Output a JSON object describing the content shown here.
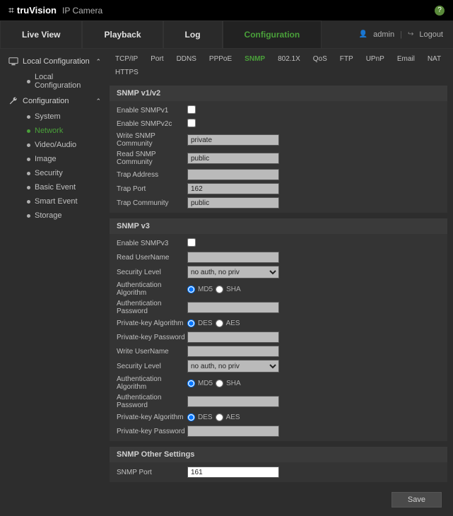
{
  "brand": {
    "logo_glyph": "⌗",
    "name": "truVision",
    "sub": "IP Camera"
  },
  "topbar": {
    "help": "?"
  },
  "mainTabs": {
    "items": [
      "Live View",
      "Playback",
      "Log",
      "Configuration"
    ],
    "activeIndex": 3
  },
  "user": {
    "name": "admin",
    "logout": "Logout"
  },
  "sidebar": {
    "sections": [
      {
        "label": "Local Configuration",
        "items": [
          {
            "label": "Local Configuration",
            "active": false
          }
        ]
      },
      {
        "label": "Configuration",
        "items": [
          {
            "label": "System",
            "active": false
          },
          {
            "label": "Network",
            "active": true
          },
          {
            "label": "Video/Audio",
            "active": false
          },
          {
            "label": "Image",
            "active": false
          },
          {
            "label": "Security",
            "active": false
          },
          {
            "label": "Basic Event",
            "active": false
          },
          {
            "label": "Smart Event",
            "active": false
          },
          {
            "label": "Storage",
            "active": false
          }
        ]
      }
    ]
  },
  "subTabs": {
    "items": [
      "TCP/IP",
      "Port",
      "DDNS",
      "PPPoE",
      "SNMP",
      "802.1X",
      "QoS",
      "FTP",
      "UPnP",
      "Email",
      "NAT",
      "HTTPS"
    ],
    "activeIndex": 4
  },
  "panel1": {
    "title": "SNMP v1/v2",
    "enable_v1_label": "Enable SNMPv1",
    "enable_v1": false,
    "enable_v2c_label": "Enable SNMPv2c",
    "enable_v2c": false,
    "write_comm_label": "Write SNMP Community",
    "write_comm": "private",
    "read_comm_label": "Read SNMP Community",
    "read_comm": "public",
    "trap_addr_label": "Trap Address",
    "trap_addr": "",
    "trap_port_label": "Trap Port",
    "trap_port": "162",
    "trap_comm_label": "Trap Community",
    "trap_comm": "public"
  },
  "panel2": {
    "title": "SNMP v3",
    "enable_v3_label": "Enable SNMPv3",
    "enable_v3": false,
    "read_user_label": "Read UserName",
    "read_user": "",
    "sec_level_label": "Security Level",
    "sec_level": "no auth, no priv",
    "auth_alg_label": "Authentication Algorithm",
    "auth_alg_opt1": "MD5",
    "auth_alg_opt2": "SHA",
    "auth_pw_label": "Authentication Password",
    "auth_pw": "",
    "priv_alg_label": "Private-key Algorithm",
    "priv_alg_opt1": "DES",
    "priv_alg_opt2": "AES",
    "priv_pw_label": "Private-key Password",
    "priv_pw": "",
    "write_user_label": "Write UserName",
    "write_user": "",
    "sec_level2_label": "Security Level",
    "sec_level2": "no auth, no priv",
    "auth_alg2_label": "Authentication Algorithm",
    "auth_alg2_opt1": "MD5",
    "auth_alg2_opt2": "SHA",
    "auth_pw2_label": "Authentication Password",
    "auth_pw2": "",
    "priv_alg2_label": "Private-key Algorithm",
    "priv_alg2_opt1": "DES",
    "priv_alg2_opt2": "AES",
    "priv_pw2_label": "Private-key Password",
    "priv_pw2": ""
  },
  "panel3": {
    "title": "SNMP Other Settings",
    "port_label": "SNMP Port",
    "port": "161"
  },
  "buttons": {
    "save": "Save"
  },
  "colors": {
    "accent": "#4aa03a",
    "bg": "#2d2d2d",
    "panel": "#343434"
  }
}
